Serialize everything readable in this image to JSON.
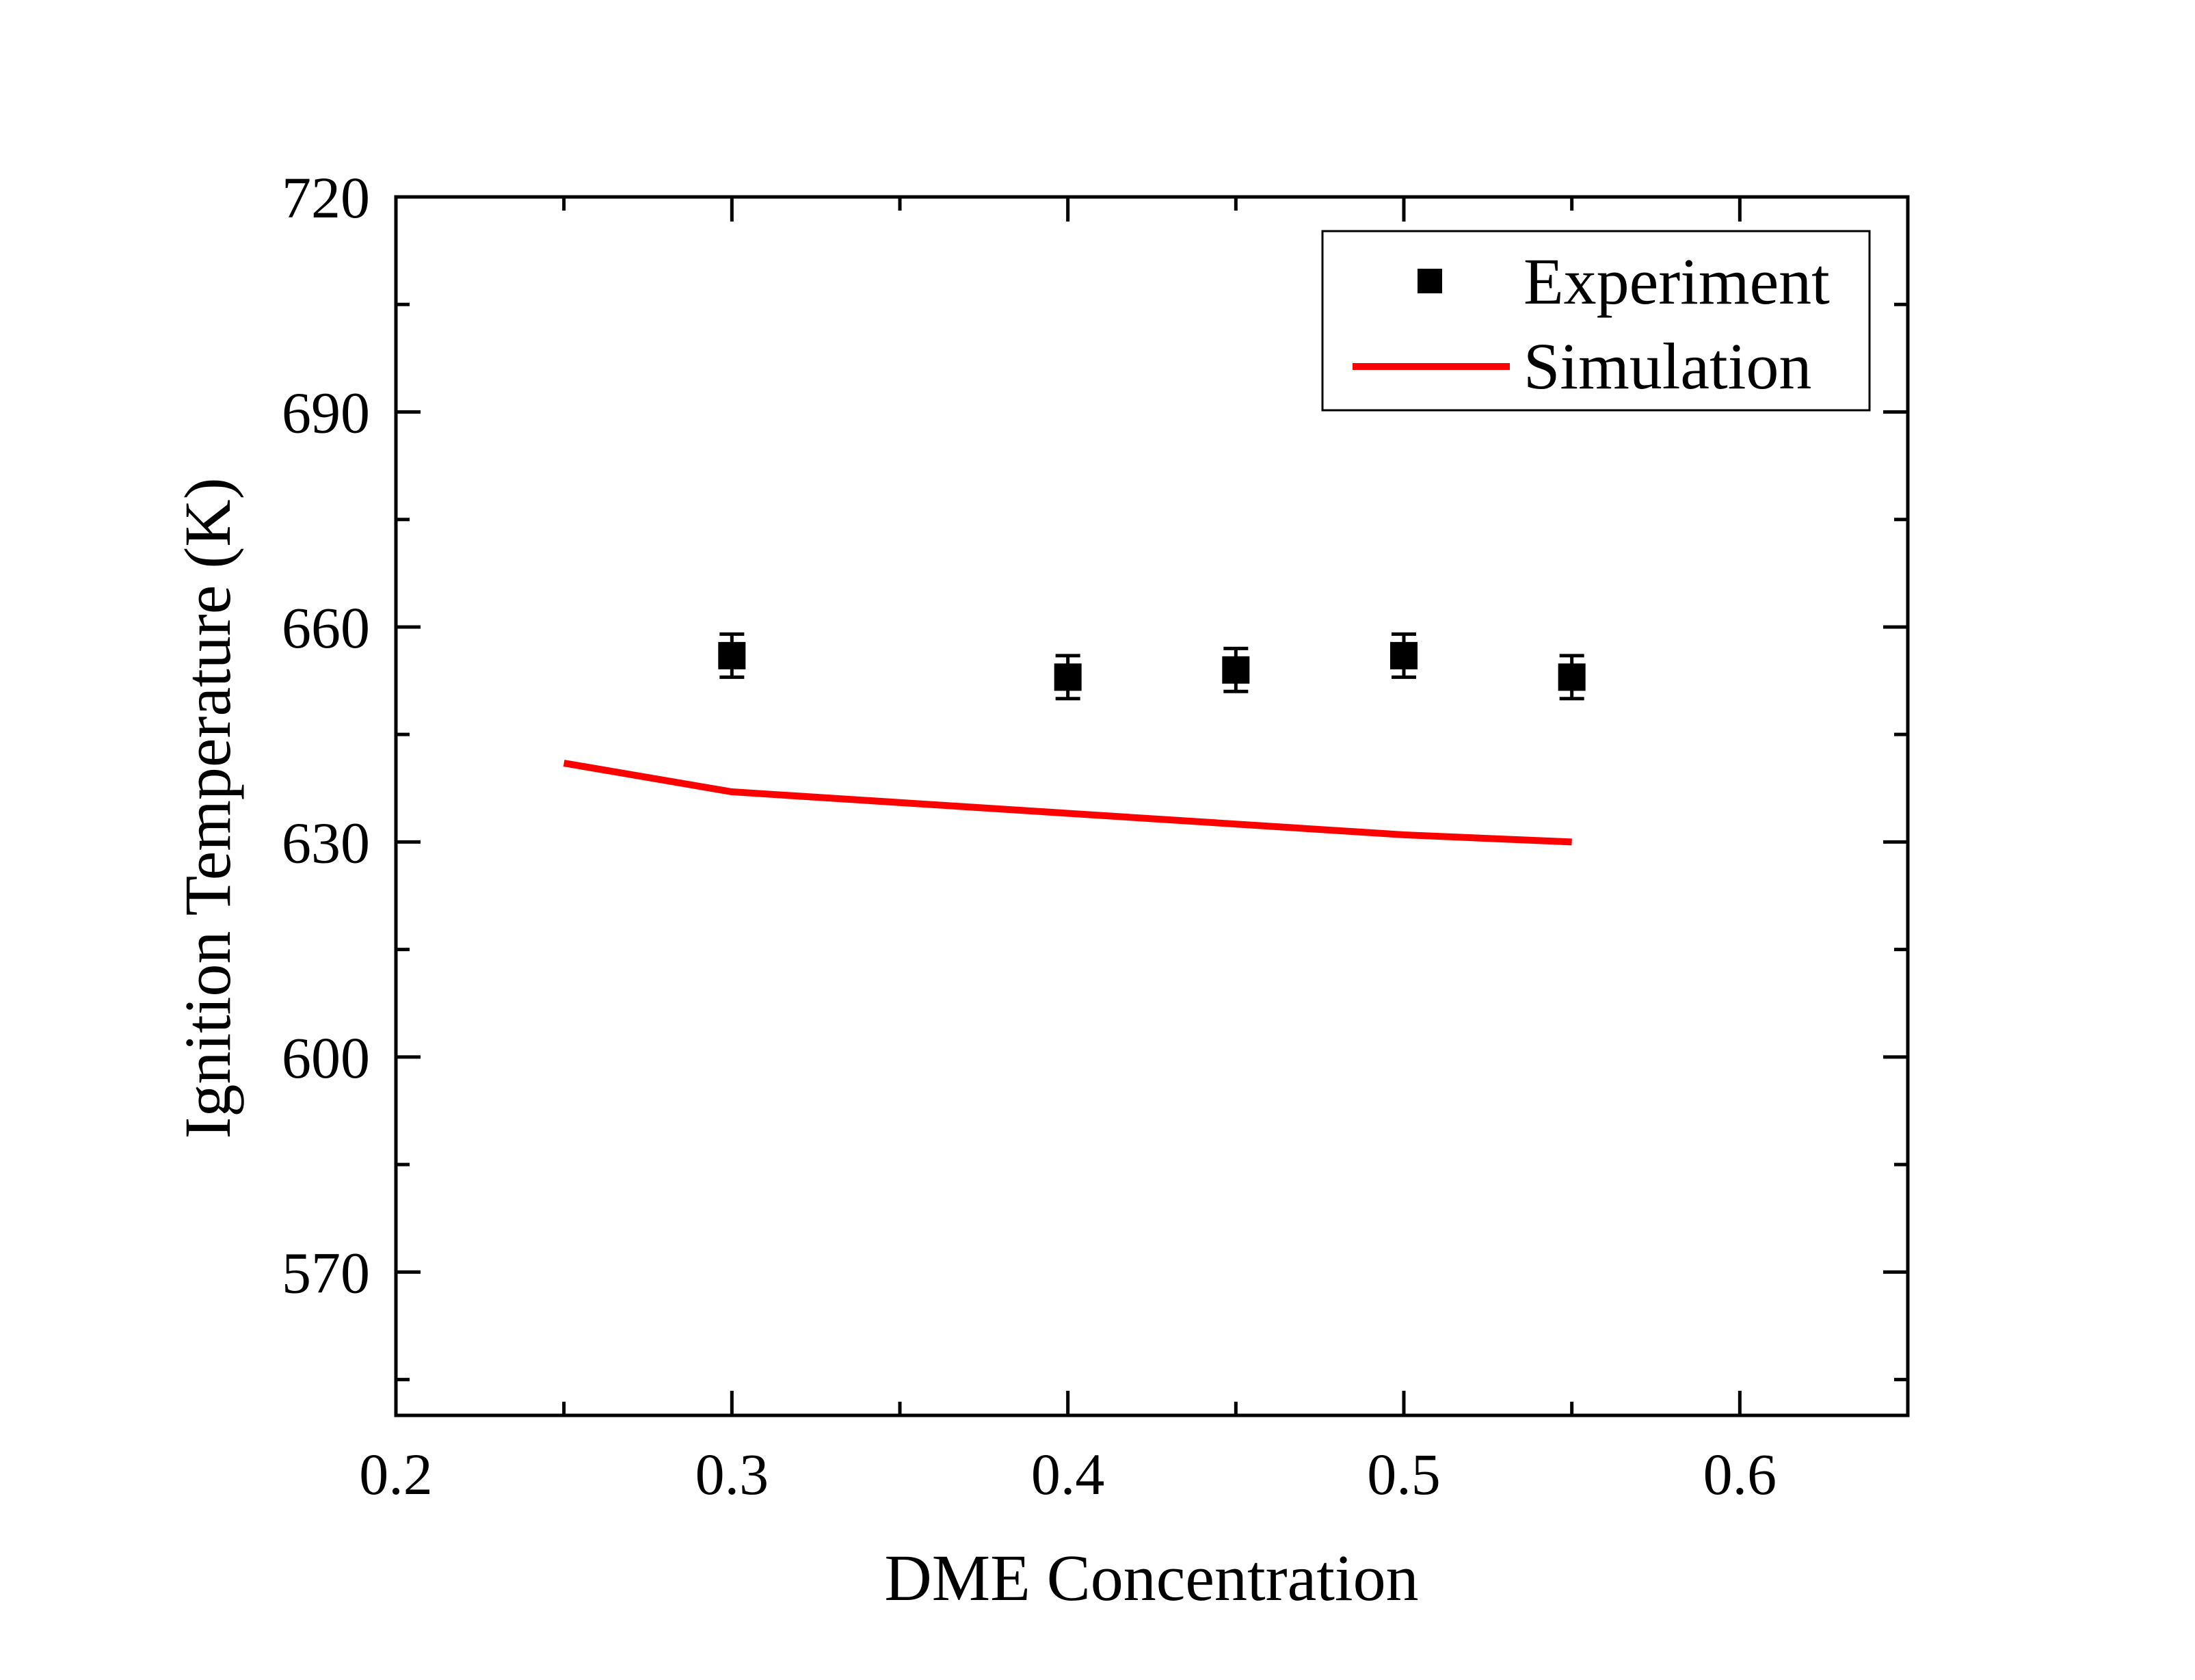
{
  "chart_data": {
    "type": "scatter",
    "title": "",
    "xlabel": "DME Concentration",
    "ylabel": "Ignition Temperature (K)",
    "xlim": [
      0.2,
      0.65
    ],
    "ylim": [
      550,
      720
    ],
    "x_ticks": [
      0.2,
      0.3,
      0.4,
      0.5,
      0.6
    ],
    "x_tick_labels": [
      "0.2",
      "0.3",
      "0.4",
      "0.5",
      "0.6"
    ],
    "y_ticks": [
      570,
      600,
      630,
      660,
      690,
      720
    ],
    "y_tick_labels": [
      "570",
      "600",
      "630",
      "660",
      "690",
      "720"
    ],
    "grid": false,
    "legend_position": "top-right",
    "series": [
      {
        "name": "Experiment",
        "kind": "scatter",
        "marker": "square",
        "color": "#000000",
        "x": [
          0.3,
          0.4,
          0.45,
          0.5,
          0.55
        ],
        "y": [
          656,
          653,
          654,
          656,
          653
        ],
        "error": [
          3,
          3,
          3,
          3,
          3
        ]
      },
      {
        "name": "Simulation",
        "kind": "line",
        "color": "#ff0000",
        "x": [
          0.25,
          0.3,
          0.4,
          0.5,
          0.55
        ],
        "y": [
          641,
          637,
          634,
          631,
          630
        ]
      }
    ]
  }
}
